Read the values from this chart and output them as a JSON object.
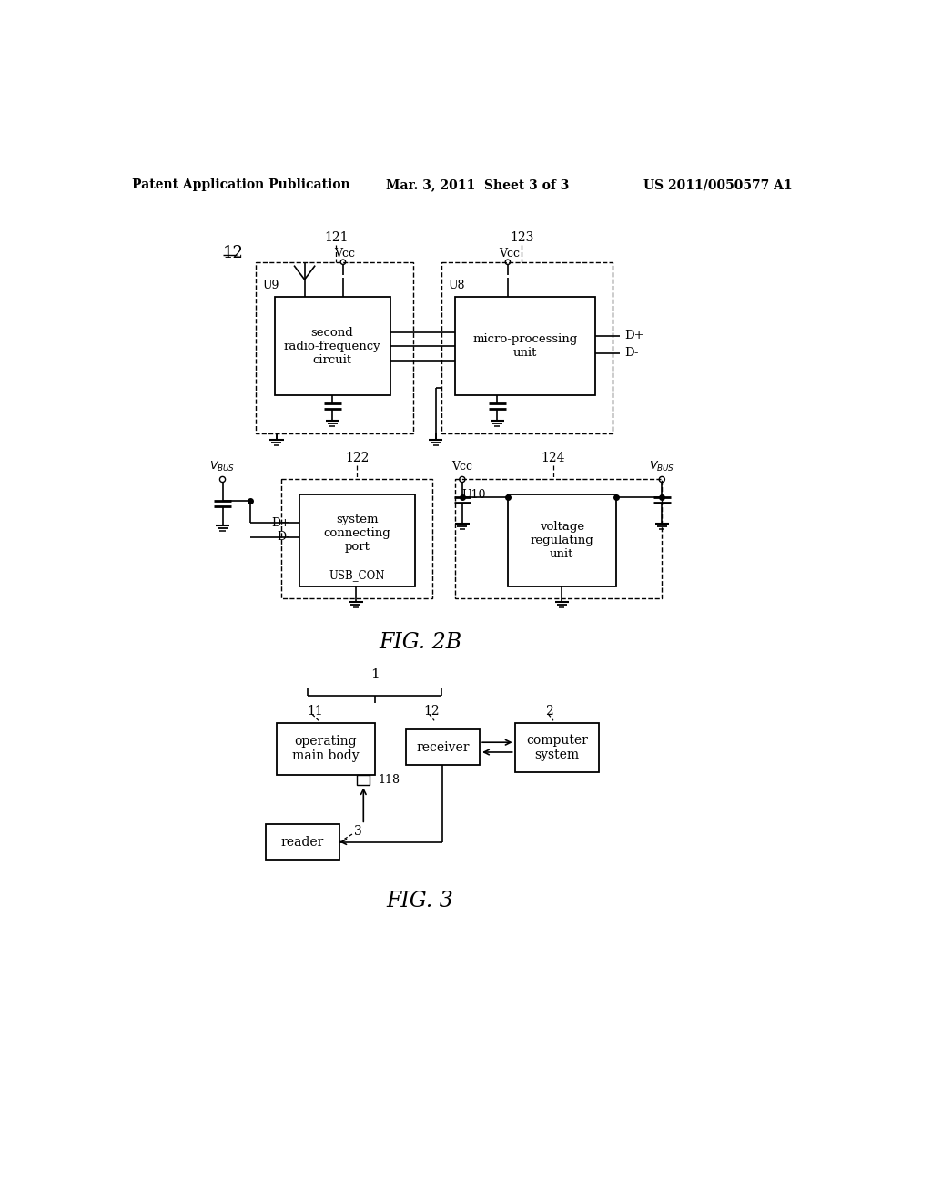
{
  "bg_color": "#ffffff",
  "line_color": "#000000",
  "header_left": "Patent Application Publication",
  "header_mid": "Mar. 3, 2011  Sheet 3 of 3",
  "header_right": "US 2011/0050577 A1"
}
